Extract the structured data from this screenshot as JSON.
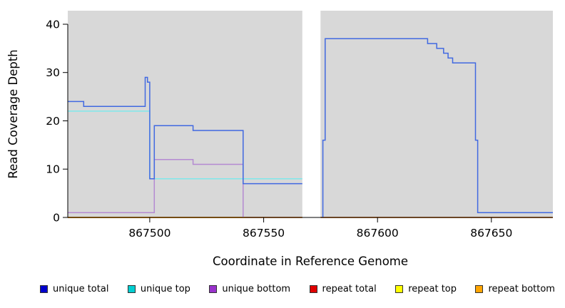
{
  "chart_data": {
    "type": "line",
    "title": "",
    "xlabel": "Coordinate in Reference Genome",
    "ylabel": "Read Coverage Depth",
    "xlim": [
      867464,
      867677
    ],
    "ylim": [
      0,
      42.8
    ],
    "xticks": [
      867500,
      867550,
      867600,
      867650
    ],
    "yticks": [
      0,
      10,
      20,
      30,
      40
    ],
    "plot_bg": "#d8d8d8",
    "gap_region": [
      867567,
      867575
    ],
    "series": [
      {
        "name": "repeat top",
        "color": "#ffff00",
        "segments": [
          [
            [
              867464,
              0
            ],
            [
              867567,
              0
            ]
          ],
          [
            [
              867575,
              0
            ],
            [
              867677,
              0
            ]
          ]
        ]
      },
      {
        "name": "repeat total",
        "color": "#b22222",
        "segments": [
          [
            [
              867464,
              0
            ],
            [
              867567,
              0
            ]
          ],
          [
            [
              867575,
              0
            ],
            [
              867677,
              0
            ]
          ]
        ]
      },
      {
        "name": "repeat bottom",
        "color": "#ffa500",
        "segments": [
          [
            [
              867464,
              0
            ],
            [
              867542,
              0
            ]
          ]
        ]
      },
      {
        "name": "unique top",
        "color": "#7fe8ea",
        "segments": [
          [
            [
              867464,
              22
            ],
            [
              867500,
              22
            ],
            [
              867500,
              8
            ],
            [
              867567,
              8
            ]
          ]
        ]
      },
      {
        "name": "unique bottom",
        "color": "#b48ad2",
        "segments": [
          [
            [
              867464,
              1
            ],
            [
              867502,
              1
            ],
            [
              867502,
              12
            ],
            [
              867519,
              12
            ],
            [
              867519,
              11
            ],
            [
              867541,
              11
            ],
            [
              867541,
              0
            ]
          ]
        ]
      },
      {
        "name": "unique total",
        "color": "#4169e1",
        "segments": [
          [
            [
              867464,
              24
            ],
            [
              867471,
              24
            ],
            [
              867471,
              23
            ],
            [
              867498,
              23
            ],
            [
              867498,
              29
            ],
            [
              867499,
              29
            ],
            [
              867499,
              28
            ],
            [
              867500,
              28
            ],
            [
              867500,
              8
            ],
            [
              867502,
              8
            ],
            [
              867502,
              19
            ],
            [
              867519,
              19
            ],
            [
              867519,
              18
            ],
            [
              867541,
              18
            ],
            [
              867541,
              7
            ],
            [
              867567,
              7
            ]
          ],
          [
            [
              867576,
              0
            ],
            [
              867576,
              16
            ],
            [
              867577,
              16
            ],
            [
              867577,
              37
            ],
            [
              867622,
              37
            ],
            [
              867622,
              36
            ],
            [
              867626,
              36
            ],
            [
              867626,
              35
            ],
            [
              867629,
              35
            ],
            [
              867629,
              34
            ],
            [
              867631,
              34
            ],
            [
              867631,
              33
            ],
            [
              867633,
              33
            ],
            [
              867633,
              32
            ],
            [
              867643,
              32
            ],
            [
              867643,
              16
            ],
            [
              867644,
              16
            ],
            [
              867644,
              1
            ],
            [
              867677,
              1
            ]
          ]
        ]
      }
    ]
  },
  "legend": {
    "items": [
      {
        "label": "unique total",
        "color": "#0000cd"
      },
      {
        "label": "unique top",
        "color": "#00ced1"
      },
      {
        "label": "unique bottom",
        "color": "#9932cc"
      },
      {
        "label": "repeat total",
        "color": "#e00000"
      },
      {
        "label": "repeat top",
        "color": "#ffff00"
      },
      {
        "label": "repeat bottom",
        "color": "#ffa500"
      }
    ]
  }
}
